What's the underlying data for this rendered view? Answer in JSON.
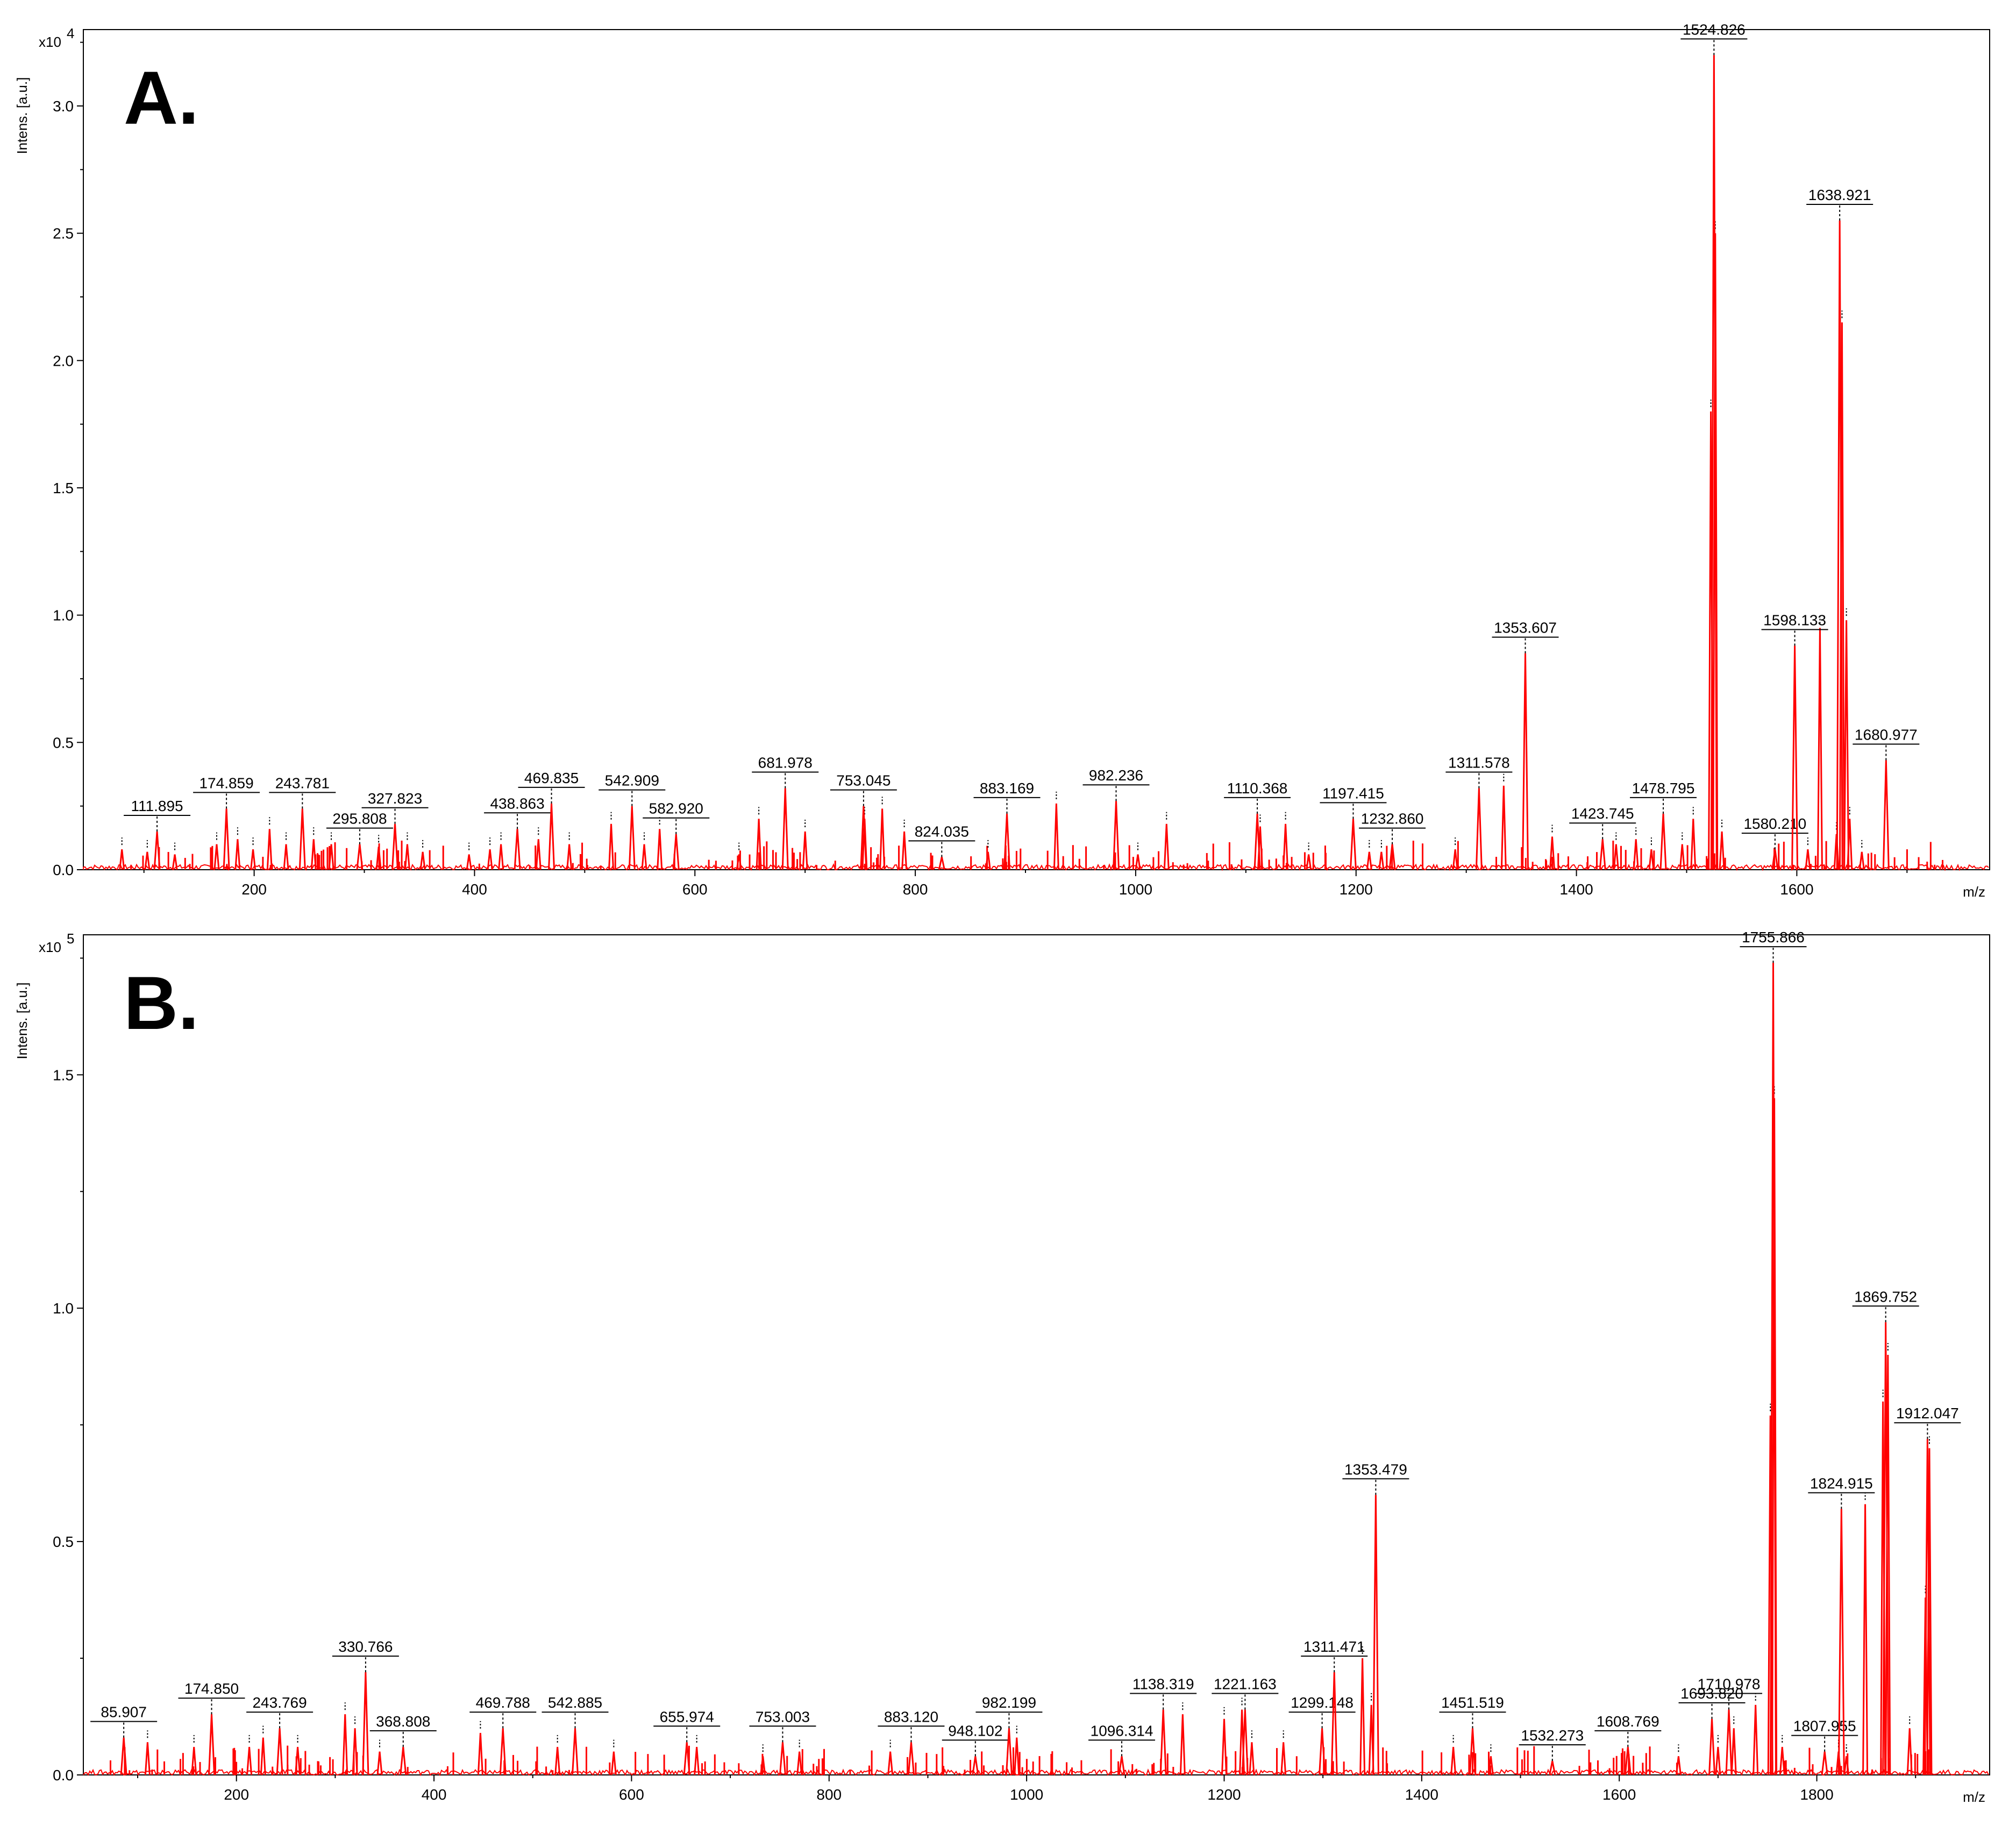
{
  "chart_data": [
    {
      "type": "line",
      "panel": "A.",
      "title": "",
      "xlabel": "m/z",
      "ylabel": "Intens. [a.u.]",
      "y_multiplier": "x10",
      "y_exponent": "4",
      "xlim": [
        45,
        1775
      ],
      "ylim": [
        0,
        3.3
      ],
      "x_ticks": [
        "200",
        "400",
        "600",
        "800",
        "1000",
        "1200",
        "1400",
        "1600"
      ],
      "x_tick_values": [
        200,
        400,
        600,
        800,
        1000,
        1200,
        1400,
        1600
      ],
      "y_ticks": [
        "0.0",
        "0.5",
        "1.0",
        "1.5",
        "2.0",
        "2.5",
        "3.0"
      ],
      "y_tick_values": [
        0,
        0.5,
        1.0,
        1.5,
        2.0,
        2.5,
        3.0
      ],
      "series_color": "#ff0000",
      "labeled_peaks": [
        {
          "mz": 111.895,
          "label": "111.895",
          "intensity": 0.15
        },
        {
          "mz": 174.859,
          "label": "174.859",
          "intensity": 0.24
        },
        {
          "mz": 243.781,
          "label": "243.781",
          "intensity": 0.24
        },
        {
          "mz": 295.808,
          "label": "295.808",
          "intensity": 0.1
        },
        {
          "mz": 327.823,
          "label": "327.823",
          "intensity": 0.18
        },
        {
          "mz": 438.863,
          "label": "438.863",
          "intensity": 0.16
        },
        {
          "mz": 469.835,
          "label": "469.835",
          "intensity": 0.26
        },
        {
          "mz": 542.909,
          "label": "542.909",
          "intensity": 0.25
        },
        {
          "mz": 582.92,
          "label": "582.920",
          "intensity": 0.14
        },
        {
          "mz": 681.978,
          "label": "681.978",
          "intensity": 0.32
        },
        {
          "mz": 753.045,
          "label": "753.045",
          "intensity": 0.25
        },
        {
          "mz": 824.035,
          "label": "824.035",
          "intensity": 0.05
        },
        {
          "mz": 883.169,
          "label": "883.169",
          "intensity": 0.22
        },
        {
          "mz": 982.236,
          "label": "982.236",
          "intensity": 0.27
        },
        {
          "mz": 1110.368,
          "label": "1110.368",
          "intensity": 0.22
        },
        {
          "mz": 1197.415,
          "label": "1197.415",
          "intensity": 0.2
        },
        {
          "mz": 1232.86,
          "label": "1232.860",
          "intensity": 0.1
        },
        {
          "mz": 1311.578,
          "label": "1311.578",
          "intensity": 0.32
        },
        {
          "mz": 1353.607,
          "label": "1353.607",
          "intensity": 0.85
        },
        {
          "mz": 1423.745,
          "label": "1423.745",
          "intensity": 0.12
        },
        {
          "mz": 1478.795,
          "label": "1478.795",
          "intensity": 0.22
        },
        {
          "mz": 1524.826,
          "label": "1524.826",
          "intensity": 3.2
        },
        {
          "mz": 1580.21,
          "label": "1580.210",
          "intensity": 0.08
        },
        {
          "mz": 1598.133,
          "label": "1598.133",
          "intensity": 0.88
        },
        {
          "mz": 1638.921,
          "label": "1638.921",
          "intensity": 2.55
        },
        {
          "mz": 1680.977,
          "label": "1680.977",
          "intensity": 0.43
        }
      ],
      "unlabeled_peaks": [
        [
          80,
          0.08
        ],
        [
          103,
          0.07
        ],
        [
          128,
          0.06
        ],
        [
          166,
          0.1
        ],
        [
          185,
          0.12
        ],
        [
          199,
          0.08
        ],
        [
          214,
          0.16
        ],
        [
          229,
          0.1
        ],
        [
          254,
          0.12
        ],
        [
          270,
          0.1
        ],
        [
          313,
          0.09
        ],
        [
          339,
          0.1
        ],
        [
          353,
          0.07
        ],
        [
          395,
          0.06
        ],
        [
          414,
          0.08
        ],
        [
          424,
          0.1
        ],
        [
          458,
          0.12
        ],
        [
          486,
          0.1
        ],
        [
          524,
          0.18
        ],
        [
          554,
          0.1
        ],
        [
          568,
          0.16
        ],
        [
          640,
          0.06
        ],
        [
          658,
          0.2
        ],
        [
          700,
          0.15
        ],
        [
          754,
          0.2
        ],
        [
          770,
          0.24
        ],
        [
          790,
          0.15
        ],
        [
          866,
          0.07
        ],
        [
          928,
          0.26
        ],
        [
          1002,
          0.06
        ],
        [
          1028,
          0.18
        ],
        [
          1113,
          0.17
        ],
        [
          1136,
          0.18
        ],
        [
          1157,
          0.06
        ],
        [
          1212,
          0.07
        ],
        [
          1223,
          0.07
        ],
        [
          1290,
          0.08
        ],
        [
          1334,
          0.33
        ],
        [
          1378,
          0.13
        ],
        [
          1436,
          0.1
        ],
        [
          1454,
          0.12
        ],
        [
          1468,
          0.08
        ],
        [
          1496,
          0.1
        ],
        [
          1506,
          0.2
        ],
        [
          1522,
          1.8
        ],
        [
          1526,
          2.5
        ],
        [
          1532,
          0.15
        ],
        [
          1610,
          0.08
        ],
        [
          1621,
          0.95
        ],
        [
          1636,
          0.14
        ],
        [
          1641,
          2.15
        ],
        [
          1645,
          0.98
        ],
        [
          1648,
          0.2
        ],
        [
          1659,
          0.07
        ]
      ]
    },
    {
      "type": "line",
      "panel": "B.",
      "title": "",
      "xlabel": "m/z",
      "ylabel": "Intens. [a.u.]",
      "y_multiplier": "x10",
      "y_exponent": "5",
      "xlim": [
        45,
        1975
      ],
      "ylim": [
        0,
        1.8
      ],
      "x_ticks": [
        "200",
        "400",
        "600",
        "800",
        "1000",
        "1200",
        "1400",
        "1600",
        "1800"
      ],
      "x_tick_values": [
        200,
        400,
        600,
        800,
        1000,
        1200,
        1400,
        1600,
        1800
      ],
      "y_ticks": [
        "0.0",
        "0.5",
        "1.0",
        "1.5"
      ],
      "y_tick_values": [
        0,
        0.5,
        1.0,
        1.5
      ],
      "series_color": "#ff0000",
      "labeled_peaks": [
        {
          "mz": 85.907,
          "label": "85.907",
          "intensity": 0.08
        },
        {
          "mz": 174.85,
          "label": "174.850",
          "intensity": 0.13
        },
        {
          "mz": 243.769,
          "label": "243.769",
          "intensity": 0.1
        },
        {
          "mz": 330.766,
          "label": "330.766",
          "intensity": 0.22
        },
        {
          "mz": 368.808,
          "label": "368.808",
          "intensity": 0.06
        },
        {
          "mz": 469.788,
          "label": "469.788",
          "intensity": 0.1
        },
        {
          "mz": 542.885,
          "label": "542.885",
          "intensity": 0.1
        },
        {
          "mz": 655.974,
          "label": "655.974",
          "intensity": 0.07
        },
        {
          "mz": 753.003,
          "label": "753.003",
          "intensity": 0.07
        },
        {
          "mz": 883.12,
          "label": "883.120",
          "intensity": 0.07
        },
        {
          "mz": 948.102,
          "label": "948.102",
          "intensity": 0.04
        },
        {
          "mz": 982.199,
          "label": "982.199",
          "intensity": 0.1
        },
        {
          "mz": 1096.314,
          "label": "1096.314",
          "intensity": 0.04
        },
        {
          "mz": 1138.319,
          "label": "1138.319",
          "intensity": 0.14
        },
        {
          "mz": 1221.163,
          "label": "1221.163",
          "intensity": 0.14
        },
        {
          "mz": 1299.148,
          "label": "1299.148",
          "intensity": 0.1
        },
        {
          "mz": 1311.471,
          "label": "1311.471",
          "intensity": 0.22
        },
        {
          "mz": 1353.479,
          "label": "1353.479",
          "intensity": 0.6
        },
        {
          "mz": 1451.519,
          "label": "1451.519",
          "intensity": 0.1
        },
        {
          "mz": 1532.273,
          "label": "1532.273",
          "intensity": 0.03
        },
        {
          "mz": 1608.769,
          "label": "1608.769",
          "intensity": 0.06
        },
        {
          "mz": 1693.82,
          "label": "1693.820",
          "intensity": 0.12
        },
        {
          "mz": 1710.978,
          "label": "1710.978",
          "intensity": 0.14
        },
        {
          "mz": 1755.866,
          "label": "1755.866",
          "intensity": 1.74
        },
        {
          "mz": 1807.955,
          "label": "1807.955",
          "intensity": 0.05
        },
        {
          "mz": 1824.915,
          "label": "1824.915",
          "intensity": 0.57
        },
        {
          "mz": 1869.752,
          "label": "1869.752",
          "intensity": 0.97
        },
        {
          "mz": 1912.047,
          "label": "1912.047",
          "intensity": 0.72
        }
      ],
      "unlabeled_peaks": [
        [
          110,
          0.07
        ],
        [
          157,
          0.06
        ],
        [
          213,
          0.06
        ],
        [
          227,
          0.08
        ],
        [
          262,
          0.06
        ],
        [
          310,
          0.13
        ],
        [
          320,
          0.1
        ],
        [
          345,
          0.05
        ],
        [
          447,
          0.09
        ],
        [
          525,
          0.06
        ],
        [
          582,
          0.05
        ],
        [
          666,
          0.06
        ],
        [
          733,
          0.04
        ],
        [
          770,
          0.05
        ],
        [
          862,
          0.05
        ],
        [
          990,
          0.08
        ],
        [
          1158,
          0.13
        ],
        [
          1200,
          0.12
        ],
        [
          1218,
          0.14
        ],
        [
          1228,
          0.07
        ],
        [
          1260,
          0.07
        ],
        [
          1340,
          0.25
        ],
        [
          1349,
          0.15
        ],
        [
          1432,
          0.06
        ],
        [
          1470,
          0.04
        ],
        [
          1660,
          0.04
        ],
        [
          1700,
          0.06
        ],
        [
          1716,
          0.1
        ],
        [
          1738,
          0.15
        ],
        [
          1753,
          0.77
        ],
        [
          1757,
          1.45
        ],
        [
          1765,
          0.06
        ],
        [
          1822,
          0.05
        ],
        [
          1830,
          0.04
        ],
        [
          1849,
          0.58
        ],
        [
          1867,
          0.8
        ],
        [
          1872,
          0.9
        ],
        [
          1894,
          0.1
        ],
        [
          1910,
          0.38
        ],
        [
          1914,
          0.7
        ]
      ]
    }
  ]
}
